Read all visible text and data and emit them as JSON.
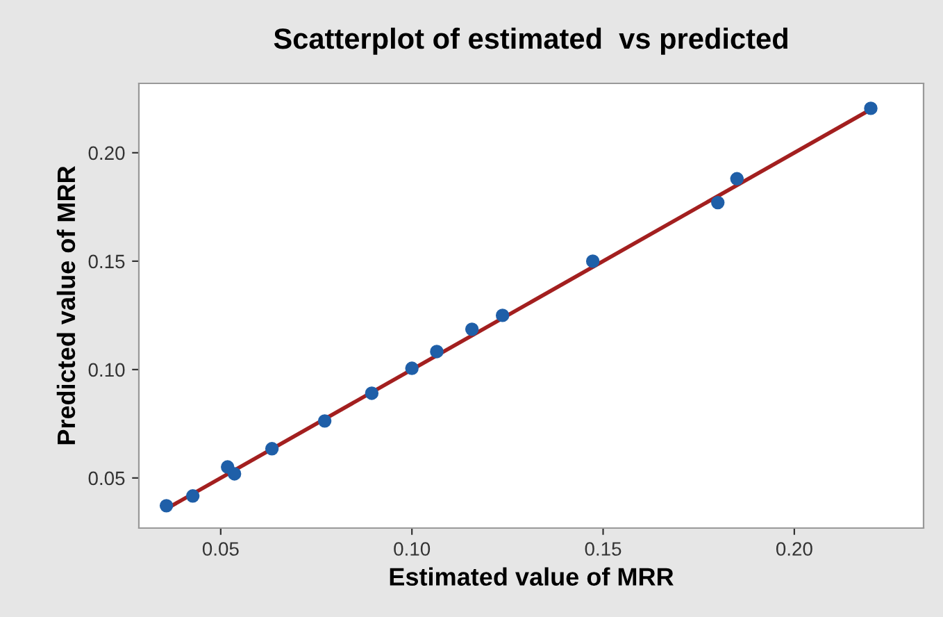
{
  "chart_data": {
    "type": "scatter",
    "title": "Scatterplot of estimated  vs predicted",
    "xlabel": "Estimated value of MRR",
    "ylabel": "Predicted value of MRR",
    "series": [
      {
        "color": "#1f5fa8",
        "marker": "circle",
        "x": [
          0.0358,
          0.0427,
          0.0518,
          0.0536,
          0.0634,
          0.0772,
          0.0895,
          0.1,
          0.1065,
          0.1157,
          0.1237,
          0.1473,
          0.18,
          0.185,
          0.22
        ],
        "values": [
          0.0372,
          0.0417,
          0.0551,
          0.0519,
          0.0635,
          0.0763,
          0.0891,
          0.1006,
          0.1083,
          0.1186,
          0.125,
          0.15,
          0.177,
          0.188,
          0.2205
        ]
      },
      {
        "type": "line",
        "color": "#a31f1f",
        "marker": "none",
        "x": [
          0.0358,
          0.2205
        ],
        "values": [
          0.0358,
          0.2205
        ]
      }
    ],
    "xlim": [
      0.0286,
      0.2338
    ],
    "ylim": [
      0.0269,
      0.232
    ],
    "xticks": [
      {
        "value": 0.05,
        "label": "0.05"
      },
      {
        "value": 0.1,
        "label": "0.10"
      },
      {
        "value": 0.15,
        "label": "0.15"
      },
      {
        "value": 0.2,
        "label": "0.20"
      }
    ],
    "yticks": [
      {
        "value": 0.05,
        "label": "0.05"
      },
      {
        "value": 0.1,
        "label": "0.10"
      },
      {
        "value": 0.15,
        "label": "0.15"
      },
      {
        "value": 0.2,
        "label": "0.20"
      }
    ],
    "grid": false,
    "legend": false
  }
}
